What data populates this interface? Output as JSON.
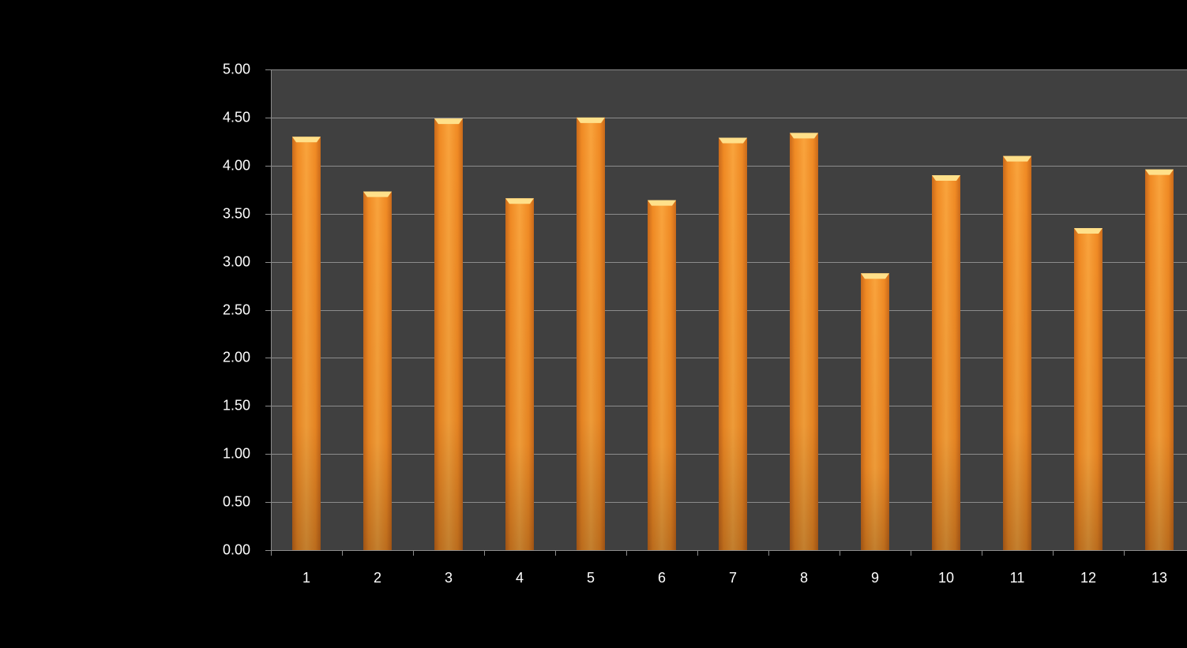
{
  "chart_data": {
    "type": "bar",
    "categories": [
      "1",
      "2",
      "3",
      "4",
      "5",
      "6",
      "7",
      "8",
      "9",
      "10",
      "11",
      "12",
      "13"
    ],
    "values": [
      4.3,
      3.73,
      4.49,
      3.66,
      4.5,
      3.64,
      4.29,
      4.34,
      2.88,
      3.9,
      4.1,
      3.35,
      3.96
    ],
    "y_ticks": [
      "0.00",
      "0.50",
      "1.00",
      "1.50",
      "2.00",
      "2.50",
      "3.00",
      "3.50",
      "4.00",
      "4.50",
      "5.00"
    ],
    "ylim": [
      0,
      5
    ],
    "title": "",
    "xlabel": "",
    "ylabel": "",
    "grid": true,
    "legend": "none",
    "colors": {
      "background": "#000000",
      "plot_area": "#404040",
      "gridline": "#8c8c8c",
      "bar_light": "#f9a33c",
      "bar_mid": "#f08a24",
      "bar_dark": "#c9691a",
      "bar_top": "#ffe08a",
      "text": "#ffffff"
    }
  }
}
